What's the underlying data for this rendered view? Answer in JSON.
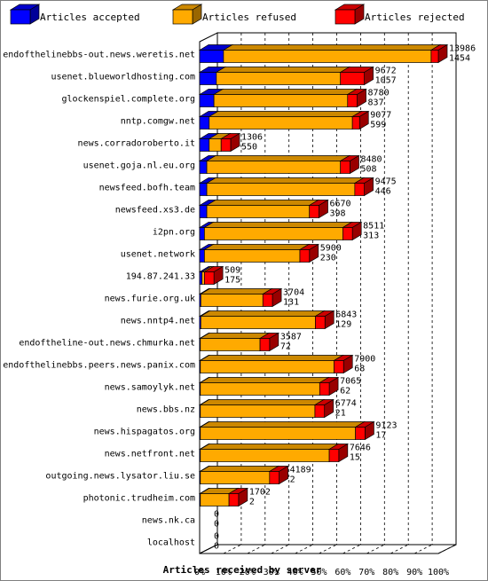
{
  "chart_data": {
    "type": "bar",
    "orientation": "horizontal",
    "stacked": "percent",
    "legend_placement": "top",
    "xlabel": "Articles received by server",
    "xlim": [
      0,
      100
    ],
    "x_ticks": [
      "0%",
      "10%",
      "20%",
      "30%",
      "40%",
      "50%",
      "60%",
      "70%",
      "80%",
      "90%",
      "100%"
    ],
    "grid": true,
    "series": [
      {
        "name": "Articles accepted",
        "color": "#0000ff"
      },
      {
        "name": "Articles refused",
        "color": "#ffaa00"
      },
      {
        "name": "Articles rejected",
        "color": "#ff0000"
      }
    ],
    "rows": [
      {
        "server": "endofthelinebbs-out.news.weretis.net",
        "refused": 13986,
        "rejected": 1454,
        "accepted_pct": 10,
        "refused_pct": 87,
        "rejected_pct": 3
      },
      {
        "server": "usenet.blueworldhosting.com",
        "refused": 9672,
        "rejected": 1057,
        "accepted_pct": 7,
        "refused_pct": 52,
        "rejected_pct": 10
      },
      {
        "server": "glockenspiel.complete.org",
        "refused": 8780,
        "rejected": 837,
        "accepted_pct": 6,
        "refused_pct": 56,
        "rejected_pct": 4
      },
      {
        "server": "nntp.comgw.net",
        "refused": 9077,
        "rejected": 599,
        "accepted_pct": 4,
        "refused_pct": 60,
        "rejected_pct": 3
      },
      {
        "server": "news.corradoroberto.it",
        "refused": 1306,
        "rejected": 550,
        "accepted_pct": 4,
        "refused_pct": 5,
        "rejected_pct": 4
      },
      {
        "server": "usenet.goja.nl.eu.org",
        "refused": 8480,
        "rejected": 508,
        "accepted_pct": 3,
        "refused_pct": 56,
        "rejected_pct": 4
      },
      {
        "server": "newsfeed.bofh.team",
        "refused": 9475,
        "rejected": 446,
        "accepted_pct": 3,
        "refused_pct": 62,
        "rejected_pct": 4
      },
      {
        "server": "newsfeed.xs3.de",
        "refused": 6670,
        "rejected": 398,
        "accepted_pct": 3,
        "refused_pct": 43,
        "rejected_pct": 4
      },
      {
        "server": "i2pn.org",
        "refused": 8511,
        "rejected": 313,
        "accepted_pct": 2,
        "refused_pct": 58,
        "rejected_pct": 4
      },
      {
        "server": "usenet.network",
        "refused": 5900,
        "rejected": 230,
        "accepted_pct": 2,
        "refused_pct": 40,
        "rejected_pct": 4
      },
      {
        "server": "194.87.241.33",
        "refused": 509,
        "rejected": 175,
        "accepted_pct": 1,
        "refused_pct": 1,
        "rejected_pct": 4
      },
      {
        "server": "news.furie.org.uk",
        "refused": 3704,
        "rejected": 131,
        "accepted_pct": 0.5,
        "refused_pct": 26,
        "rejected_pct": 4
      },
      {
        "server": "news.nntp4.net",
        "refused": 6843,
        "rejected": 129,
        "accepted_pct": 0.5,
        "refused_pct": 48,
        "rejected_pct": 4
      },
      {
        "server": "endoftheline-out.news.chmurka.net",
        "refused": 3587,
        "rejected": 72,
        "accepted_pct": 0.3,
        "refused_pct": 25,
        "rejected_pct": 4
      },
      {
        "server": "endofthelinebbs.peers.news.panix.com",
        "refused": 7900,
        "rejected": 68,
        "accepted_pct": 0.3,
        "refused_pct": 56,
        "rejected_pct": 4
      },
      {
        "server": "news.samoylyk.net",
        "refused": 7065,
        "rejected": 62,
        "accepted_pct": 0.3,
        "refused_pct": 50,
        "rejected_pct": 4
      },
      {
        "server": "news.bbs.nz",
        "refused": 6774,
        "rejected": 21,
        "accepted_pct": 0.3,
        "refused_pct": 48,
        "rejected_pct": 4
      },
      {
        "server": "news.hispagatos.org",
        "refused": 9123,
        "rejected": 17,
        "accepted_pct": 0.3,
        "refused_pct": 65,
        "rejected_pct": 4
      },
      {
        "server": "news.netfront.net",
        "refused": 7646,
        "rejected": 15,
        "accepted_pct": 0.3,
        "refused_pct": 54,
        "rejected_pct": 4
      },
      {
        "server": "outgoing.news.lysator.liu.se",
        "refused": 4189,
        "rejected": 2,
        "accepted_pct": 0.3,
        "refused_pct": 29,
        "rejected_pct": 4
      },
      {
        "server": "photonic.trudheim.com",
        "refused": 1702,
        "rejected": 2,
        "accepted_pct": 0.3,
        "refused_pct": 12,
        "rejected_pct": 4
      },
      {
        "server": "news.nk.ca",
        "refused": 0,
        "rejected": 0,
        "accepted_pct": 0,
        "refused_pct": 0,
        "rejected_pct": 0
      },
      {
        "server": "localhost",
        "refused": 0,
        "rejected": 0,
        "accepted_pct": 0,
        "refused_pct": 0,
        "rejected_pct": 0
      }
    ]
  }
}
